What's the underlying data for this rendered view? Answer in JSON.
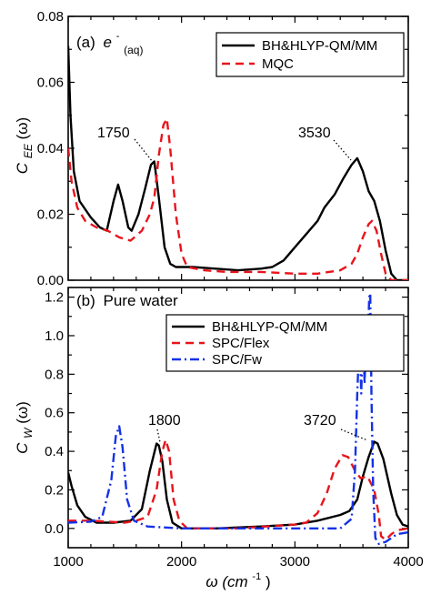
{
  "chart_data": [
    {
      "type": "line",
      "panel_label": "(a)",
      "panel_title_prefix": "e",
      "panel_title_sup": "-",
      "panel_title_sub": "(aq)",
      "ylabel": "C",
      "ylabel_sub": "EE",
      "ylabel_tail": "(ω)",
      "xlim": [
        1000,
        4000
      ],
      "ylim": [
        0,
        0.08
      ],
      "yticks": [
        0,
        0.02,
        0.04,
        0.06,
        0.08
      ],
      "ytick_labels": [
        "0.00",
        "0.02",
        "0.04",
        "0.06",
        "0.08"
      ],
      "legend_position": "top-right",
      "series": [
        {
          "name": "BH&HLYP-QM/MM",
          "color": "#000000",
          "dash": "solid",
          "points": [
            [
              1000,
              0.071
            ],
            [
              1020,
              0.05
            ],
            [
              1050,
              0.033
            ],
            [
              1100,
              0.024
            ],
            [
              1200,
              0.019
            ],
            [
              1280,
              0.016
            ],
            [
              1340,
              0.015
            ],
            [
              1400,
              0.024
            ],
            [
              1440,
              0.029
            ],
            [
              1480,
              0.024
            ],
            [
              1530,
              0.016
            ],
            [
              1560,
              0.015
            ],
            [
              1620,
              0.02
            ],
            [
              1680,
              0.028
            ],
            [
              1730,
              0.035
            ],
            [
              1760,
              0.036
            ],
            [
              1800,
              0.025
            ],
            [
              1850,
              0.01
            ],
            [
              1900,
              0.005
            ],
            [
              1950,
              0.004
            ],
            [
              2100,
              0.004
            ],
            [
              2300,
              0.0035
            ],
            [
              2500,
              0.003
            ],
            [
              2700,
              0.0035
            ],
            [
              2800,
              0.004
            ],
            [
              2900,
              0.006
            ],
            [
              3000,
              0.01
            ],
            [
              3100,
              0.014
            ],
            [
              3200,
              0.018
            ],
            [
              3260,
              0.022
            ],
            [
              3350,
              0.026
            ],
            [
              3430,
              0.031
            ],
            [
              3500,
              0.035
            ],
            [
              3550,
              0.037
            ],
            [
              3600,
              0.033
            ],
            [
              3650,
              0.027
            ],
            [
              3700,
              0.024
            ],
            [
              3750,
              0.018
            ],
            [
              3800,
              0.009
            ],
            [
              3850,
              0.002
            ],
            [
              3900,
              0.0
            ],
            [
              4000,
              0.0
            ]
          ]
        },
        {
          "name": "MQC",
          "color": "#e8141c",
          "dash": "9,6",
          "points": [
            [
              1000,
              0.04
            ],
            [
              1030,
              0.03
            ],
            [
              1080,
              0.022
            ],
            [
              1150,
              0.018
            ],
            [
              1250,
              0.016
            ],
            [
              1350,
              0.015
            ],
            [
              1450,
              0.013
            ],
            [
              1550,
              0.012
            ],
            [
              1650,
              0.015
            ],
            [
              1720,
              0.02
            ],
            [
              1760,
              0.025
            ],
            [
              1800,
              0.038
            ],
            [
              1840,
              0.047
            ],
            [
              1870,
              0.049
            ],
            [
              1900,
              0.04
            ],
            [
              1950,
              0.02
            ],
            [
              2000,
              0.008
            ],
            [
              2050,
              0.004
            ],
            [
              2200,
              0.003
            ],
            [
              2400,
              0.0025
            ],
            [
              2700,
              0.0025
            ],
            [
              3000,
              0.002
            ],
            [
              3200,
              0.002
            ],
            [
              3400,
              0.003
            ],
            [
              3500,
              0.005
            ],
            [
              3550,
              0.008
            ],
            [
              3600,
              0.013
            ],
            [
              3650,
              0.017
            ],
            [
              3680,
              0.018
            ],
            [
              3720,
              0.015
            ],
            [
              3760,
              0.008
            ],
            [
              3800,
              0.002
            ],
            [
              3850,
              0.0
            ],
            [
              4000,
              0.0
            ]
          ]
        }
      ],
      "annotations": [
        {
          "text": "1750",
          "x": 1750,
          "y": 0.0365
        },
        {
          "text": "3530",
          "x": 3530,
          "y": 0.0368
        }
      ]
    },
    {
      "type": "line",
      "panel_label": "(b)",
      "panel_title_prefix": "Pure water",
      "ylabel": "C",
      "ylabel_sub": "W",
      "ylabel_tail": "(ω)",
      "xlabel": "ω (cm",
      "xlabel_sup": "-1",
      "xlabel_tail": ")",
      "xlim": [
        1000,
        4000
      ],
      "ylim": [
        -0.1,
        1.25
      ],
      "xticks": [
        1000,
        2000,
        3000,
        4000
      ],
      "xtick_labels": [
        "1000",
        "2000",
        "3000",
        "4000"
      ],
      "yticks": [
        0,
        0.2,
        0.4,
        0.6,
        0.8,
        1.0,
        1.2
      ],
      "ytick_labels": [
        "0.0",
        "0.2",
        "0.4",
        "0.6",
        "0.8",
        "1.0",
        "1.2"
      ],
      "legend_position": "top-right",
      "series": [
        {
          "name": "BH&HLYP-QM/MM",
          "color": "#000000",
          "dash": "solid",
          "points": [
            [
              1000,
              0.29
            ],
            [
              1030,
              0.22
            ],
            [
              1080,
              0.12
            ],
            [
              1150,
              0.06
            ],
            [
              1250,
              0.03
            ],
            [
              1400,
              0.03
            ],
            [
              1550,
              0.04
            ],
            [
              1650,
              0.1
            ],
            [
              1720,
              0.3
            ],
            [
              1780,
              0.44
            ],
            [
              1800,
              0.43
            ],
            [
              1830,
              0.35
            ],
            [
              1870,
              0.15
            ],
            [
              1920,
              0.03
            ],
            [
              2000,
              0.0
            ],
            [
              2300,
              0.0
            ],
            [
              2700,
              0.01
            ],
            [
              3000,
              0.02
            ],
            [
              3200,
              0.04
            ],
            [
              3400,
              0.07
            ],
            [
              3480,
              0.09
            ],
            [
              3550,
              0.15
            ],
            [
              3600,
              0.27
            ],
            [
              3650,
              0.37
            ],
            [
              3700,
              0.45
            ],
            [
              3730,
              0.44
            ],
            [
              3780,
              0.36
            ],
            [
              3850,
              0.18
            ],
            [
              3900,
              0.07
            ],
            [
              3950,
              0.02
            ],
            [
              4000,
              0.01
            ]
          ]
        },
        {
          "name": "SPC/Flex",
          "color": "#e8141c",
          "dash": "9,6",
          "points": [
            [
              1000,
              0.04
            ],
            [
              1200,
              0.04
            ],
            [
              1500,
              0.03
            ],
            [
              1600,
              0.04
            ],
            [
              1700,
              0.06
            ],
            [
              1780,
              0.2
            ],
            [
              1830,
              0.4
            ],
            [
              1860,
              0.46
            ],
            [
              1890,
              0.4
            ],
            [
              1930,
              0.15
            ],
            [
              1980,
              0.04
            ],
            [
              2050,
              0.0
            ],
            [
              2500,
              0.0
            ],
            [
              3000,
              0.02
            ],
            [
              3100,
              0.03
            ],
            [
              3200,
              0.08
            ],
            [
              3280,
              0.18
            ],
            [
              3350,
              0.31
            ],
            [
              3420,
              0.38
            ],
            [
              3470,
              0.37
            ],
            [
              3530,
              0.3
            ],
            [
              3580,
              0.26
            ],
            [
              3640,
              0.27
            ],
            [
              3700,
              0.2
            ],
            [
              3740,
              0.07
            ],
            [
              3760,
              -0.04
            ],
            [
              3800,
              -0.06
            ],
            [
              3850,
              -0.03
            ],
            [
              3900,
              -0.01
            ],
            [
              4000,
              0.0
            ]
          ]
        },
        {
          "name": "SPC/Fw",
          "color": "#1432e6",
          "dash": "10,4,2,4",
          "points": [
            [
              1000,
              0.03
            ],
            [
              1200,
              0.035
            ],
            [
              1300,
              0.06
            ],
            [
              1380,
              0.25
            ],
            [
              1420,
              0.48
            ],
            [
              1450,
              0.53
            ],
            [
              1480,
              0.42
            ],
            [
              1520,
              0.15
            ],
            [
              1580,
              0.04
            ],
            [
              1700,
              0.01
            ],
            [
              2000,
              0.0
            ],
            [
              2500,
              0.0
            ],
            [
              3000,
              0.0
            ],
            [
              3400,
              0.0
            ],
            [
              3500,
              0.05
            ],
            [
              3530,
              0.3
            ],
            [
              3550,
              0.7
            ],
            [
              3570,
              1.0
            ],
            [
              3585,
              0.7
            ],
            [
              3600,
              1.05
            ],
            [
              3615,
              0.75
            ],
            [
              3630,
              1.1
            ],
            [
              3640,
              0.85
            ],
            [
              3655,
              1.2
            ],
            [
              3665,
              1.22
            ],
            [
              3675,
              0.7
            ],
            [
              3690,
              0.2
            ],
            [
              3710,
              -0.05
            ],
            [
              3740,
              -0.08
            ],
            [
              3800,
              -0.07
            ],
            [
              3900,
              -0.03
            ],
            [
              4000,
              -0.02
            ]
          ]
        }
      ],
      "annotations": [
        {
          "text": "1800",
          "x": 1800,
          "y": 0.44
        },
        {
          "text": "3720",
          "x": 3700,
          "y": 0.45
        }
      ]
    }
  ]
}
